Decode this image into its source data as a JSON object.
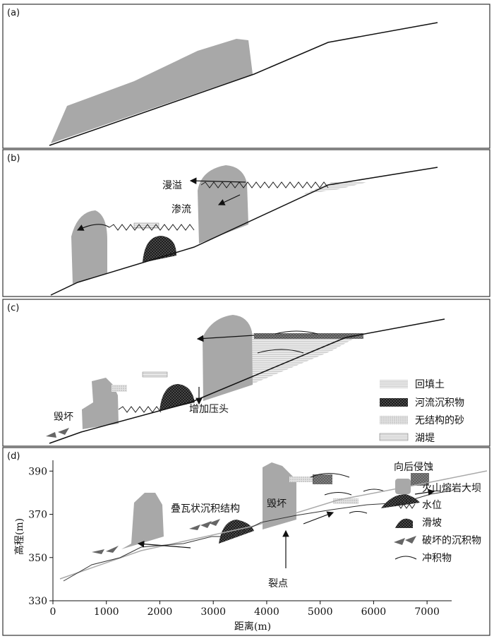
{
  "panels": [
    {
      "label": "(a)"
    },
    {
      "label": "(b)",
      "annotations": [
        "漫溢",
        "渗流"
      ]
    },
    {
      "label": "(c)",
      "annotations": [
        "毁坏",
        "增加压头"
      ],
      "legend": [
        "回填土",
        "河流沉积物",
        "无结构的砂",
        "湖堤"
      ]
    },
    {
      "label": "(d)",
      "annotations": [
        "向后侵蚀",
        "叠瓦状沉积结构",
        "毁坏",
        "裂点"
      ],
      "legend": [
        "火山熔岩大坝",
        "水位",
        "滑坡",
        "破坏的沉积物",
        "冲积物"
      ],
      "x_label": "距离(m)",
      "y_label": "高程(m)",
      "xlim": [
        0,
        7500
      ],
      "ylim": [
        330,
        395
      ],
      "xticks": [
        0,
        1000,
        2000,
        3000,
        4000,
        5000,
        6000,
        7000
      ],
      "yticks": [
        330,
        350,
        370,
        390
      ]
    }
  ]
}
